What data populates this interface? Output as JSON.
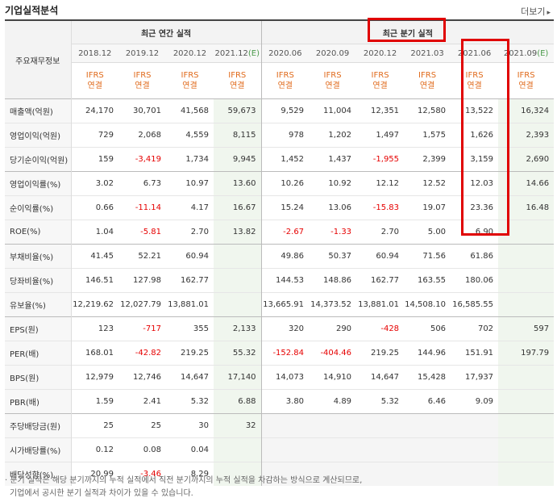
{
  "title": "기업실적분석",
  "more_label": "더보기",
  "row_header": "주요재무정보",
  "annual_header": "최근 연간 실적",
  "quarter_header": "최근 분기 실적",
  "annual_periods": [
    "2018.12",
    "2019.12",
    "2020.12",
    "2021.12(E)"
  ],
  "quarter_periods": [
    "2020.06",
    "2020.09",
    "2020.12",
    "2021.03",
    "2021.06",
    "2021.09(E)"
  ],
  "ifrs_top": "IFRS",
  "ifrs_bottom": "연결",
  "rows": [
    {
      "label": "매출액(억원)",
      "values": [
        "24,170",
        "30,701",
        "41,568",
        "59,673",
        "9,529",
        "11,004",
        "12,351",
        "12,580",
        "13,522",
        "16,324"
      ],
      "group_start": true
    },
    {
      "label": "영업이익(억원)",
      "values": [
        "729",
        "2,068",
        "4,559",
        "8,115",
        "978",
        "1,202",
        "1,497",
        "1,575",
        "1,626",
        "2,393"
      ]
    },
    {
      "label": "당기순이익(억원)",
      "values": [
        "159",
        "-3,419",
        "1,734",
        "9,945",
        "1,452",
        "1,437",
        "-1,955",
        "2,399",
        "3,159",
        "2,690"
      ]
    },
    {
      "label": "영업이익률(%)",
      "values": [
        "3.02",
        "6.73",
        "10.97",
        "13.60",
        "10.26",
        "10.92",
        "12.12",
        "12.52",
        "12.03",
        "14.66"
      ],
      "group_start": true
    },
    {
      "label": "순이익률(%)",
      "values": [
        "0.66",
        "-11.14",
        "4.17",
        "16.67",
        "15.24",
        "13.06",
        "-15.83",
        "19.07",
        "23.36",
        "16.48"
      ]
    },
    {
      "label": "ROE(%)",
      "values": [
        "1.04",
        "-5.81",
        "2.70",
        "13.82",
        "-2.67",
        "-1.33",
        "2.70",
        "5.00",
        "6.90",
        ""
      ]
    },
    {
      "label": "부채비율(%)",
      "values": [
        "41.45",
        "52.21",
        "60.94",
        "",
        "49.86",
        "50.37",
        "60.94",
        "71.56",
        "61.86",
        ""
      ],
      "group_start": true
    },
    {
      "label": "당좌비율(%)",
      "values": [
        "146.51",
        "127.98",
        "162.77",
        "",
        "144.53",
        "148.86",
        "162.77",
        "163.55",
        "180.06",
        ""
      ]
    },
    {
      "label": "유보율(%)",
      "values": [
        "12,219.62",
        "12,027.79",
        "13,881.01",
        "",
        "13,665.91",
        "14,373.52",
        "13,881.01",
        "14,508.10",
        "16,585.55",
        ""
      ]
    },
    {
      "label": "EPS(원)",
      "values": [
        "123",
        "-717",
        "355",
        "2,133",
        "320",
        "290",
        "-428",
        "506",
        "702",
        "597"
      ],
      "group_start": true
    },
    {
      "label": "PER(배)",
      "values": [
        "168.01",
        "-42.82",
        "219.25",
        "55.32",
        "-152.84",
        "-404.46",
        "219.25",
        "144.96",
        "151.91",
        "197.79"
      ]
    },
    {
      "label": "BPS(원)",
      "values": [
        "12,979",
        "12,746",
        "14,647",
        "17,140",
        "14,073",
        "14,910",
        "14,647",
        "15,428",
        "17,937",
        ""
      ]
    },
    {
      "label": "PBR(배)",
      "values": [
        "1.59",
        "2.41",
        "5.32",
        "6.88",
        "3.80",
        "4.89",
        "5.32",
        "6.46",
        "9.09",
        ""
      ]
    },
    {
      "label": "주당배당금(원)",
      "values": [
        "25",
        "25",
        "30",
        "32",
        "",
        "",
        "",
        "",
        "",
        ""
      ],
      "group_start": true
    },
    {
      "label": "시가배당률(%)",
      "values": [
        "0.12",
        "0.08",
        "0.04",
        "",
        "",
        "",
        "",
        "",
        "",
        ""
      ]
    },
    {
      "label": "배당성향(%)",
      "values": [
        "20.99",
        "-3.46",
        "8.29",
        "",
        "",
        "",
        "",
        "",
        "",
        ""
      ]
    }
  ],
  "notes": [
    "· 분기 실적은 해당 분기까지의 누적 실적에서 직전 분기까지의 누적 실적을 차감하는 방식으로 계산되므로,",
    "  기업에서 공시한 분기 실적과 차이가 있을 수 있습니다."
  ],
  "colors": {
    "negative": "#e60000",
    "ifrs": "#e06a1b",
    "highlight_box": "#e00000",
    "estimate_bg": "#f0f6ee"
  }
}
